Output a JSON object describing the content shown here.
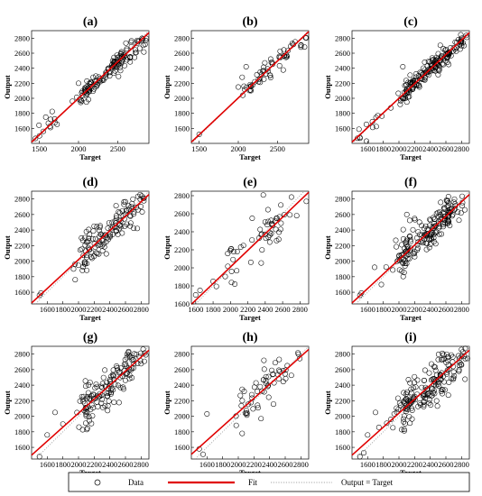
{
  "legend": {
    "items": [
      "Data",
      "Fit",
      "Output = Target"
    ],
    "colors": {
      "data": "#000000",
      "fit": "#e00000",
      "identity": "#888888"
    }
  },
  "chart_data": [
    {
      "id": "a",
      "title": "(a)",
      "type": "scatter",
      "xlabel": "Target",
      "ylabel": "Output",
      "xlim": [
        1400,
        2900
      ],
      "ylim": [
        1400,
        2900
      ],
      "xticks": [
        1500,
        2000,
        2500
      ],
      "yticks": [
        1600,
        1800,
        2000,
        2200,
        2400,
        2600,
        2800
      ],
      "fit": {
        "slope": 0.97,
        "intercept": 60
      },
      "clusters": [
        {
          "x": 2500,
          "y": 2480,
          "n": 120,
          "sx": 230,
          "sy": 70
        },
        {
          "x": 2100,
          "y": 2110,
          "n": 30,
          "sx": 60,
          "sy": 50
        },
        {
          "x": 1600,
          "y": 1620,
          "n": 10,
          "sx": 90,
          "sy": 80
        }
      ],
      "outliers": [
        [
          2000,
          2200
        ],
        [
          2100,
          1950
        ],
        [
          1500,
          1500
        ],
        [
          1550,
          1560
        ]
      ]
    },
    {
      "id": "b",
      "title": "(b)",
      "type": "scatter",
      "xlabel": "Target",
      "ylabel": "Output",
      "xlim": [
        1400,
        2900
      ],
      "ylim": [
        1400,
        2900
      ],
      "xticks": [
        1500,
        2000,
        2500
      ],
      "yticks": [
        1600,
        1800,
        2000,
        2200,
        2400,
        2600,
        2800
      ],
      "fit": {
        "slope": 0.98,
        "intercept": 45
      },
      "clusters": [
        {
          "x": 2500,
          "y": 2490,
          "n": 50,
          "sx": 210,
          "sy": 70
        },
        {
          "x": 2150,
          "y": 2160,
          "n": 12,
          "sx": 60,
          "sy": 60
        }
      ],
      "outliers": [
        [
          2100,
          2420
        ],
        [
          2000,
          2150
        ],
        [
          2050,
          2280
        ],
        [
          1500,
          1520
        ]
      ]
    },
    {
      "id": "c",
      "title": "(c)",
      "type": "scatter",
      "xlabel": "Target",
      "ylabel": "Output",
      "xlim": [
        1400,
        2900
      ],
      "ylim": [
        1400,
        2900
      ],
      "xticks": [
        1600,
        1800,
        2000,
        2200,
        2400,
        2600,
        2800
      ],
      "yticks": [
        1600,
        1800,
        2000,
        2200,
        2400,
        2600,
        2800
      ],
      "fit": {
        "slope": 0.97,
        "intercept": 60
      },
      "clusters": [
        {
          "x": 2500,
          "y": 2480,
          "n": 150,
          "sx": 230,
          "sy": 75
        },
        {
          "x": 2100,
          "y": 2110,
          "n": 35,
          "sx": 60,
          "sy": 60
        },
        {
          "x": 1600,
          "y": 1620,
          "n": 10,
          "sx": 80,
          "sy": 80
        }
      ],
      "outliers": [
        [
          2050,
          2420
        ],
        [
          2100,
          1950
        ],
        [
          1500,
          1480
        ]
      ]
    },
    {
      "id": "d",
      "title": "(d)",
      "type": "scatter",
      "xlabel": "Target",
      "ylabel": "Output",
      "xlim": [
        1400,
        2900
      ],
      "ylim": [
        1450,
        2900
      ],
      "xticks": [
        1600,
        1800,
        2000,
        2200,
        2400,
        2600,
        2800
      ],
      "yticks": [
        1600,
        1800,
        2000,
        2200,
        2400,
        2600,
        2800
      ],
      "fit": {
        "slope": 0.93,
        "intercept": 160
      },
      "clusters": [
        {
          "x": 2500,
          "y": 2470,
          "n": 110,
          "sx": 230,
          "sy": 110
        },
        {
          "x": 2100,
          "y": 2130,
          "n": 30,
          "sx": 70,
          "sy": 130
        }
      ],
      "outliers": [
        [
          1400,
          2020
        ],
        [
          1500,
          1560
        ],
        [
          1520,
          1590
        ],
        [
          2050,
          1880
        ],
        [
          2100,
          2380
        ],
        [
          2200,
          2450
        ]
      ]
    },
    {
      "id": "e",
      "title": "(e)",
      "type": "scatter",
      "xlabel": "Target",
      "ylabel": "Output",
      "xlim": [
        1550,
        2900
      ],
      "ylim": [
        1600,
        2850
      ],
      "xticks": [
        1600,
        1800,
        2000,
        2200,
        2400,
        2600,
        2800
      ],
      "yticks": [
        1600,
        1800,
        2000,
        2200,
        2400,
        2600,
        2800
      ],
      "fit": {
        "slope": 0.92,
        "intercept": 170
      },
      "clusters": [
        {
          "x": 2450,
          "y": 2430,
          "n": 45,
          "sx": 220,
          "sy": 130
        },
        {
          "x": 2050,
          "y": 2100,
          "n": 12,
          "sx": 80,
          "sy": 150
        }
      ],
      "outliers": [
        [
          1550,
          2030
        ],
        [
          1600,
          1700
        ],
        [
          1650,
          1750
        ],
        [
          1800,
          1850
        ],
        [
          2050,
          1820
        ],
        [
          2250,
          2550
        ]
      ]
    },
    {
      "id": "f",
      "title": "(f)",
      "type": "scatter",
      "xlabel": "Target",
      "ylabel": "Output",
      "xlim": [
        1400,
        2900
      ],
      "ylim": [
        1450,
        2900
      ],
      "xticks": [
        1600,
        1800,
        2000,
        2200,
        2400,
        2600,
        2800
      ],
      "yticks": [
        1600,
        1800,
        2000,
        2200,
        2400,
        2600,
        2800
      ],
      "fit": {
        "slope": 0.93,
        "intercept": 160
      },
      "clusters": [
        {
          "x": 2500,
          "y": 2470,
          "n": 150,
          "sx": 230,
          "sy": 120
        },
        {
          "x": 2100,
          "y": 2130,
          "n": 40,
          "sx": 70,
          "sy": 140
        }
      ],
      "outliers": [
        [
          1400,
          2020
        ],
        [
          1500,
          1560
        ],
        [
          1520,
          1590
        ],
        [
          2100,
          2600
        ],
        [
          2200,
          2550
        ]
      ]
    },
    {
      "id": "g",
      "title": "(g)",
      "type": "scatter",
      "xlabel": "Target",
      "ylabel": "Output",
      "xlim": [
        1400,
        2900
      ],
      "ylim": [
        1450,
        2900
      ],
      "xticks": [
        1600,
        1800,
        2000,
        2200,
        2400,
        2600,
        2800
      ],
      "yticks": [
        1600,
        1800,
        2000,
        2200,
        2400,
        2600,
        2800
      ],
      "fit": {
        "slope": 0.9,
        "intercept": 240
      },
      "clusters": [
        {
          "x": 2500,
          "y": 2480,
          "n": 120,
          "sx": 230,
          "sy": 130
        },
        {
          "x": 2100,
          "y": 2150,
          "n": 30,
          "sx": 70,
          "sy": 150
        }
      ],
      "outliers": [
        [
          1400,
          2080
        ],
        [
          1500,
          1480
        ],
        [
          1600,
          1760
        ],
        [
          1700,
          2050
        ],
        [
          1800,
          1900
        ]
      ]
    },
    {
      "id": "h",
      "title": "(h)",
      "type": "scatter",
      "xlabel": "Target",
      "ylabel": "Output",
      "xlim": [
        1400,
        2900
      ],
      "ylim": [
        1450,
        2900
      ],
      "xticks": [
        1600,
        1800,
        2000,
        2200,
        2400,
        2600,
        2800
      ],
      "yticks": [
        1600,
        1800,
        2000,
        2200,
        2400,
        2600,
        2800
      ],
      "fit": {
        "slope": 0.9,
        "intercept": 250
      },
      "clusters": [
        {
          "x": 2450,
          "y": 2450,
          "n": 50,
          "sx": 220,
          "sy": 140
        },
        {
          "x": 2100,
          "y": 2130,
          "n": 12,
          "sx": 70,
          "sy": 150
        }
      ],
      "outliers": [
        [
          1500,
          1580
        ],
        [
          1550,
          1510
        ],
        [
          1600,
          2030
        ],
        [
          2050,
          1780
        ]
      ]
    },
    {
      "id": "i",
      "title": "(i)",
      "type": "scatter",
      "xlabel": "Target",
      "ylabel": "Output",
      "xlim": [
        1400,
        2900
      ],
      "ylim": [
        1450,
        2900
      ],
      "xticks": [
        1600,
        1800,
        2000,
        2200,
        2400,
        2600,
        2800
      ],
      "yticks": [
        1600,
        1800,
        2000,
        2200,
        2400,
        2600,
        2800
      ],
      "fit": {
        "slope": 0.9,
        "intercept": 240
      },
      "clusters": [
        {
          "x": 2500,
          "y": 2480,
          "n": 150,
          "sx": 230,
          "sy": 135
        },
        {
          "x": 2100,
          "y": 2150,
          "n": 40,
          "sx": 70,
          "sy": 150
        }
      ],
      "outliers": [
        [
          1400,
          2060
        ],
        [
          1500,
          1480
        ],
        [
          1550,
          1530
        ],
        [
          1600,
          1760
        ],
        [
          1700,
          2050
        ]
      ]
    }
  ]
}
